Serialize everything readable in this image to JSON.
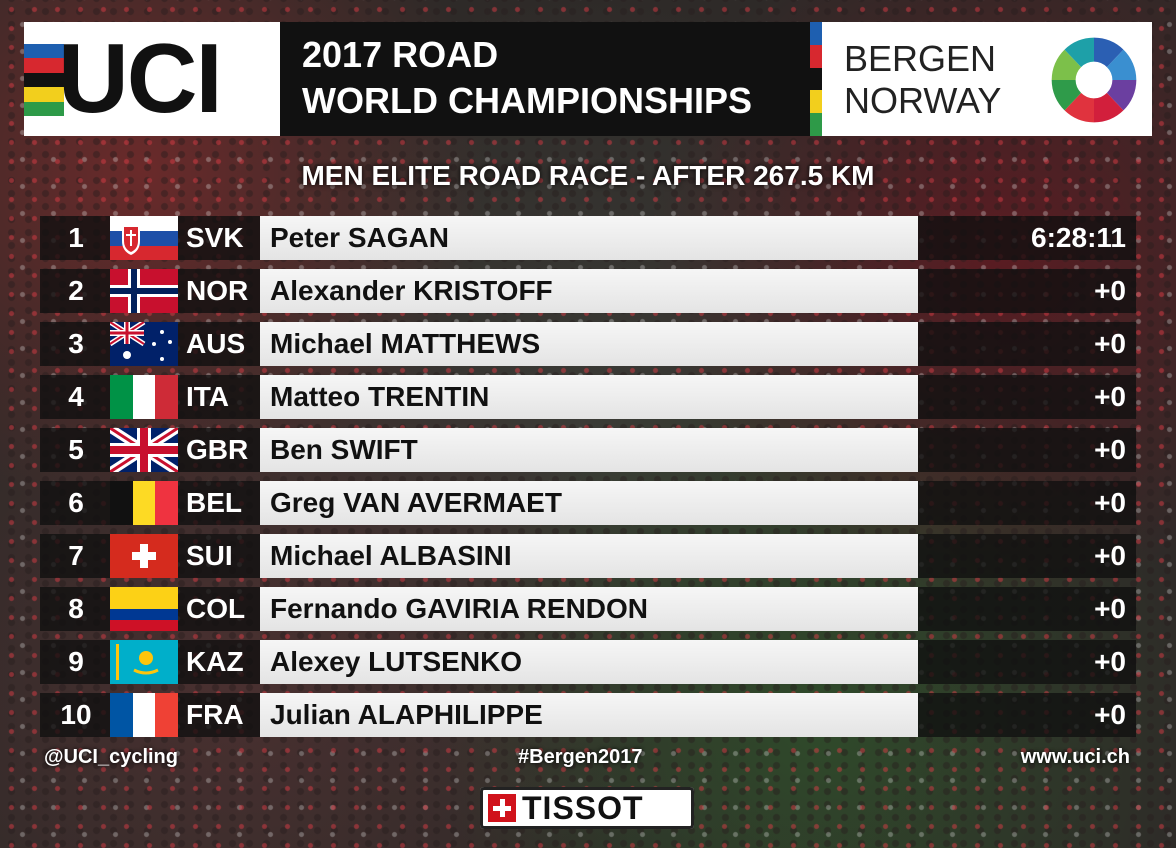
{
  "header": {
    "logo_text": "UCI",
    "title_line1": "2017 ROAD",
    "title_line2": "WORLD CHAMPIONSHIPS",
    "location_line1": "BERGEN",
    "location_line2": "NORWAY"
  },
  "race_title": "MEN ELITE ROAD RACE - AFTER 267.5 KM",
  "results": [
    {
      "pos": "1",
      "code": "SVK",
      "name": "Peter SAGAN",
      "time": "6:28:11",
      "flag": "svk-flag-icon"
    },
    {
      "pos": "2",
      "code": "NOR",
      "name": "Alexander KRISTOFF",
      "time": "+0",
      "flag": "nor-flag-icon"
    },
    {
      "pos": "3",
      "code": "AUS",
      "name": "Michael MATTHEWS",
      "time": "+0",
      "flag": "aus-flag-icon"
    },
    {
      "pos": "4",
      "code": "ITA",
      "name": "Matteo TRENTIN",
      "time": "+0",
      "flag": "ita-flag-icon"
    },
    {
      "pos": "5",
      "code": "GBR",
      "name": "Ben SWIFT",
      "time": "+0",
      "flag": "gbr-flag-icon"
    },
    {
      "pos": "6",
      "code": "BEL",
      "name": "Greg VAN AVERMAET",
      "time": "+0",
      "flag": "bel-flag-icon"
    },
    {
      "pos": "7",
      "code": "SUI",
      "name": "Michael ALBASINI",
      "time": "+0",
      "flag": "sui-flag-icon"
    },
    {
      "pos": "8",
      "code": "COL",
      "name": "Fernando GAVIRIA RENDON",
      "time": "+0",
      "flag": "col-flag-icon"
    },
    {
      "pos": "9",
      "code": "KAZ",
      "name": "Alexey LUTSENKO",
      "time": "+0",
      "flag": "kaz-flag-icon"
    },
    {
      "pos": "10",
      "code": "FRA",
      "name": "Julian ALAPHILIPPE",
      "time": "+0",
      "flag": "fra-flag-icon"
    }
  ],
  "footer": {
    "twitter": "@UCI_cycling",
    "hashtag": "#Bergen2017",
    "website": "www.uci.ch",
    "sponsor": "TISSOT"
  },
  "colors": {
    "rainbow": [
      "#1e5fb0",
      "#d7282f",
      "#111111",
      "#f2cf1d",
      "#2e9a48"
    ],
    "name_bar": "#f0f0f0",
    "row_bg": "#141414"
  }
}
